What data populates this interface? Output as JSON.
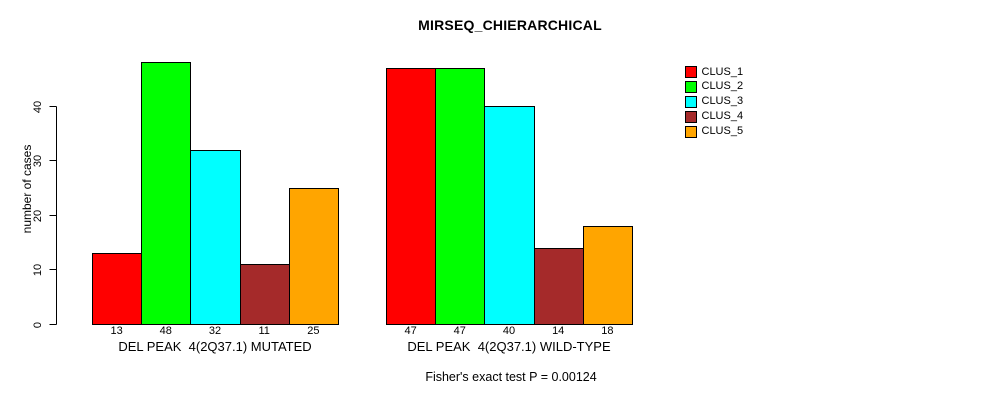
{
  "chart_data": {
    "type": "bar",
    "title": "MIRSEQ_CHIERARCHICAL",
    "ylabel": "number of cases",
    "xlabel": "",
    "ylim": [
      0,
      48
    ],
    "yticks": [
      0,
      10,
      20,
      30,
      40
    ],
    "grid": false,
    "legend_position": "right",
    "bar_borders": "#000000",
    "categories": [
      "DEL PEAK  4(2Q37.1) MUTATED",
      "DEL PEAK  4(2Q37.1) WILD-TYPE"
    ],
    "series": [
      {
        "name": "CLUS_1",
        "color": "#ff0000",
        "values": [
          13,
          47
        ]
      },
      {
        "name": "CLUS_2",
        "color": "#00ff00",
        "values": [
          48,
          47
        ]
      },
      {
        "name": "CLUS_3",
        "color": "#00ffff",
        "values": [
          32,
          40
        ]
      },
      {
        "name": "CLUS_4",
        "color": "#a52a2a",
        "values": [
          11,
          14
        ]
      },
      {
        "name": "CLUS_5",
        "color": "#ffa500",
        "values": [
          25,
          18
        ]
      }
    ],
    "bar_value_labels": [
      [
        13,
        48,
        32,
        11,
        25
      ],
      [
        47,
        47,
        40,
        14,
        18
      ]
    ],
    "annotation": "Fisher's exact test P = 0.00124"
  }
}
